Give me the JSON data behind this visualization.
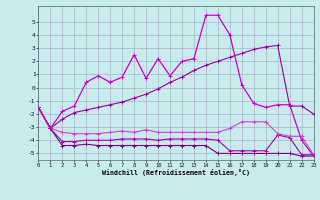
{
  "xlabel": "Windchill (Refroidissement éolien,°C)",
  "xlim": [
    0,
    23
  ],
  "ylim": [
    -5.5,
    6.2
  ],
  "yticks": [
    -5,
    -4,
    -3,
    -2,
    -1,
    0,
    1,
    2,
    3,
    4,
    5
  ],
  "xticks": [
    0,
    1,
    2,
    3,
    4,
    5,
    6,
    7,
    8,
    9,
    10,
    11,
    12,
    13,
    14,
    15,
    16,
    17,
    18,
    19,
    20,
    21,
    22,
    23
  ],
  "background_color": "#c8ecec",
  "grid_color": "#9999bb",
  "line1_x": [
    0,
    1,
    2,
    3,
    4,
    5,
    6,
    7,
    8,
    9,
    10,
    11,
    12,
    13,
    14,
    15,
    16,
    17,
    18,
    19,
    20,
    21,
    22,
    23
  ],
  "line1_y": [
    -1.5,
    -3.1,
    -4.4,
    -4.4,
    -4.3,
    -4.4,
    -4.4,
    -4.4,
    -4.4,
    -4.4,
    -4.4,
    -4.4,
    -4.4,
    -4.4,
    -4.4,
    -5.0,
    -5.0,
    -5.0,
    -5.0,
    -5.0,
    -5.0,
    -5.0,
    -5.2,
    -5.2
  ],
  "line1_color": "#770077",
  "line2_x": [
    0,
    1,
    2,
    3,
    4,
    5,
    6,
    7,
    8,
    9,
    10,
    11,
    12,
    13,
    14,
    15,
    16,
    17,
    18,
    19,
    20,
    21,
    22,
    23
  ],
  "line2_y": [
    -1.5,
    -3.1,
    -4.1,
    -4.1,
    -4.0,
    -4.0,
    -4.0,
    -3.9,
    -3.9,
    -3.9,
    -4.0,
    -3.9,
    -3.9,
    -3.9,
    -3.9,
    -4.0,
    -4.8,
    -4.8,
    -4.8,
    -4.8,
    -3.6,
    -3.8,
    -5.1,
    -5.1
  ],
  "line2_color": "#aa00aa",
  "line3_x": [
    0,
    1,
    2,
    3,
    4,
    5,
    6,
    7,
    8,
    9,
    10,
    11,
    12,
    13,
    14,
    15,
    16,
    17,
    18,
    19,
    20,
    21,
    22,
    23
  ],
  "line3_y": [
    -1.5,
    -3.1,
    -3.4,
    -3.5,
    -3.5,
    -3.5,
    -3.4,
    -3.3,
    -3.4,
    -3.2,
    -3.4,
    -3.4,
    -3.4,
    -3.4,
    -3.4,
    -3.4,
    -3.1,
    -2.6,
    -2.6,
    -2.6,
    -3.5,
    -3.7,
    -3.7,
    -5.1
  ],
  "line3_color": "#cc44cc",
  "line4_x": [
    0,
    1,
    2,
    3,
    4,
    5,
    6,
    7,
    8,
    9,
    10,
    11,
    12,
    13,
    14,
    15,
    16,
    17,
    18,
    19,
    20,
    21,
    22,
    23
  ],
  "line4_y": [
    -1.5,
    -3.1,
    -2.4,
    -1.9,
    -1.7,
    -1.5,
    -1.3,
    -1.1,
    -0.8,
    -0.5,
    -0.1,
    0.4,
    0.8,
    1.3,
    1.7,
    2.0,
    2.3,
    2.6,
    2.9,
    3.1,
    3.2,
    -1.4,
    -1.4,
    -2.0
  ],
  "line4_color": "#990099",
  "line5_x": [
    0,
    1,
    2,
    3,
    4,
    5,
    6,
    7,
    8,
    9,
    10,
    11,
    12,
    13,
    14,
    15,
    16,
    17,
    18,
    19,
    20,
    21,
    22,
    23
  ],
  "line5_y": [
    -1.5,
    -3.1,
    -1.8,
    -1.4,
    0.4,
    0.9,
    0.4,
    0.8,
    2.5,
    0.7,
    2.2,
    0.9,
    2.0,
    2.2,
    5.5,
    5.5,
    4.0,
    0.2,
    -1.2,
    -1.5,
    -1.3,
    -1.3,
    -4.0,
    -5.2
  ],
  "line5_color": "#cc00cc"
}
